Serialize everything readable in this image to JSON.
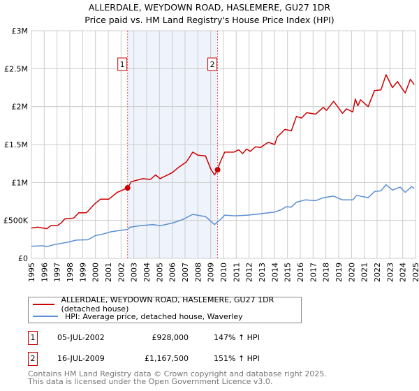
{
  "title": {
    "line1": "ALLERDALE, WEYDOWN ROAD, HASLEMERE, GU27 1DR",
    "line2": "Price paid vs. HM Land Registry's House Price Index (HPI)"
  },
  "legend": {
    "property": "ALLERDALE, WEYDOWN ROAD, HASLEMERE, GU27 1DR (detached house)",
    "hpi": "HPI: Average price, detached house, Waverley"
  },
  "transactions": [
    {
      "num": "1",
      "date": "05-JUL-2002",
      "price": "£928,000",
      "hpi": "147% ↑ HPI"
    },
    {
      "num": "2",
      "date": "16-JUL-2009",
      "price": "£1,167,500",
      "hpi": "151% ↑ HPI"
    }
  ],
  "footer": {
    "line1": "Contains HM Land Registry data © Crown copyright and database right 2025.",
    "line2": "This data is licensed under the Open Government Licence v3.0."
  },
  "colors": {
    "property": "#cc0000",
    "hpi": "#5b8fd4",
    "shade": "#eef3fc",
    "grid": "#cccccc"
  },
  "chart_data": {
    "type": "line",
    "xlim": [
      1995,
      2025
    ],
    "ylim": [
      0,
      3000000
    ],
    "yticks": [
      {
        "v": 0,
        "label": "£0"
      },
      {
        "v": 500000,
        "label": "£500K"
      },
      {
        "v": 1000000,
        "label": "£1M"
      },
      {
        "v": 1500000,
        "label": "£1.5M"
      },
      {
        "v": 2000000,
        "label": "£2M"
      },
      {
        "v": 2500000,
        "label": "£2.5M"
      },
      {
        "v": 3000000,
        "label": "£3M"
      }
    ],
    "xticks": [
      "1995",
      "1996",
      "1997",
      "1998",
      "1999",
      "2000",
      "2001",
      "2002",
      "2003",
      "2004",
      "2005",
      "2006",
      "2007",
      "2008",
      "2009",
      "2010",
      "2011",
      "2012",
      "2013",
      "2014",
      "2015",
      "2016",
      "2017",
      "2018",
      "2019",
      "2020",
      "2021",
      "2022",
      "2023",
      "2024",
      "2025"
    ],
    "grid": true,
    "shaded_range": [
      2002.51,
      2009.54
    ],
    "markers": [
      {
        "label": "1",
        "x": 2002.51,
        "y": 928000
      },
      {
        "label": "2",
        "x": 2009.54,
        "y": 1167500
      }
    ],
    "series": [
      {
        "name": "ALLERDALE, WEYDOWN ROAD, HASLEMERE, GU27 1DR (detached house)",
        "color": "#cc0000",
        "x": [
          1995.0,
          1995.5,
          1996.2,
          1996.5,
          1997.05,
          1997.35,
          1997.6,
          1998.3,
          1998.7,
          1999.3,
          1999.9,
          2000.4,
          2001.05,
          2001.7,
          2002.51,
          2002.8,
          2003.7,
          2004.3,
          2004.7,
          2005.05,
          2006.0,
          2006.5,
          2007.1,
          2007.6,
          2008.0,
          2008.6,
          2009.0,
          2009.3,
          2009.54,
          2009.75,
          2010.1,
          2010.8,
          2011.2,
          2011.5,
          2011.8,
          2012.1,
          2012.5,
          2012.9,
          2013.5,
          2014.0,
          2014.2,
          2014.8,
          2015.3,
          2015.7,
          2016.1,
          2016.5,
          2017.2,
          2017.8,
          2018.05,
          2018.6,
          2019.0,
          2019.3,
          2019.6,
          2020.1,
          2020.3,
          2020.5,
          2020.7,
          2021.3,
          2021.8,
          2022.3,
          2022.7,
          2023.2,
          2023.6,
          2023.9,
          2024.2,
          2024.6,
          2024.9
        ],
        "y": [
          400000,
          410000,
          390000,
          430000,
          435000,
          470000,
          520000,
          530000,
          600000,
          600000,
          710000,
          780000,
          780000,
          870000,
          928000,
          1010000,
          1050000,
          1040000,
          1100000,
          1050000,
          1130000,
          1200000,
          1270000,
          1400000,
          1360000,
          1350000,
          1180000,
          1100000,
          1167500,
          1270000,
          1400000,
          1400000,
          1430000,
          1380000,
          1440000,
          1410000,
          1470000,
          1460000,
          1530000,
          1500000,
          1600000,
          1700000,
          1680000,
          1870000,
          1850000,
          1920000,
          1900000,
          1990000,
          1950000,
          2070000,
          1980000,
          1910000,
          1970000,
          1930000,
          2100000,
          2010000,
          2090000,
          2000000,
          2210000,
          2220000,
          2420000,
          2250000,
          2330000,
          2250000,
          2180000,
          2360000,
          2290000
        ]
      },
      {
        "name": "HPI: Average price, detached house, Waverley",
        "color": "#5b8fd4",
        "x": [
          1995.0,
          1995.9,
          1996.2,
          1996.7,
          1997.4,
          1997.9,
          1998.5,
          1999.4,
          2000.0,
          2000.6,
          2001.2,
          2002.0,
          2002.5,
          2002.7,
          2003.5,
          2004.5,
          2005.05,
          2006.0,
          2006.8,
          2007.6,
          2008.6,
          2009.0,
          2009.3,
          2009.75,
          2010.1,
          2010.9,
          2011.9,
          2012.5,
          2013.5,
          2014.0,
          2014.5,
          2014.9,
          2015.3,
          2015.7,
          2016.4,
          2017.2,
          2017.8,
          2018.6,
          2019.3,
          2020.1,
          2020.4,
          2021.3,
          2021.8,
          2022.3,
          2022.7,
          2023.2,
          2023.8,
          2024.2,
          2024.7,
          2024.9
        ],
        "y": [
          160000,
          166000,
          153000,
          178000,
          200000,
          215000,
          240000,
          245000,
          300000,
          320000,
          350000,
          370000,
          380000,
          410000,
          430000,
          445000,
          430000,
          465000,
          510000,
          580000,
          550000,
          490000,
          445000,
          510000,
          570000,
          560000,
          570000,
          580000,
          600000,
          610000,
          640000,
          680000,
          675000,
          740000,
          770000,
          760000,
          800000,
          820000,
          770000,
          770000,
          830000,
          800000,
          880000,
          890000,
          970000,
          900000,
          940000,
          870000,
          945000,
          920000
        ]
      }
    ]
  }
}
